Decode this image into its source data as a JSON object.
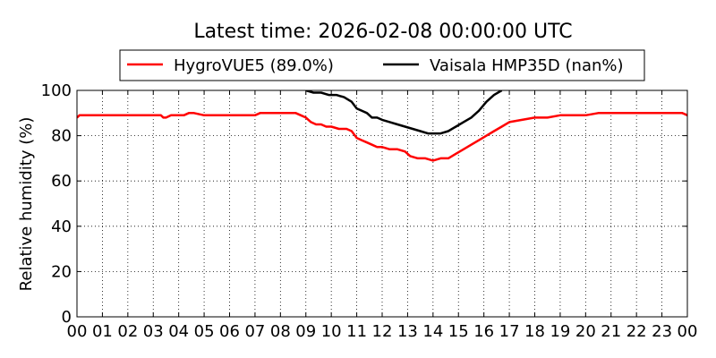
{
  "chart_data": {
    "type": "line",
    "title": "Latest time: 2026-02-08 00:00:00 UTC",
    "xlabel": "",
    "ylabel": "Relative humidity (%)",
    "xlim": [
      0,
      24
    ],
    "ylim": [
      0,
      100
    ],
    "grid": true,
    "legend_position": "top-center",
    "x_ticks": [
      "00",
      "01",
      "02",
      "03",
      "04",
      "05",
      "06",
      "07",
      "08",
      "09",
      "10",
      "11",
      "12",
      "13",
      "14",
      "15",
      "16",
      "17",
      "18",
      "19",
      "20",
      "21",
      "22",
      "23",
      "00"
    ],
    "y_ticks": [
      "0",
      "20",
      "40",
      "60",
      "80",
      "100"
    ],
    "series": [
      {
        "name": "HygroVUE5 (89.0%)",
        "color": "#ff0000",
        "x": [
          0.0,
          0.1,
          0.5,
          1.0,
          1.5,
          2.0,
          2.5,
          3.0,
          3.3,
          3.4,
          3.5,
          3.7,
          4.0,
          4.2,
          4.4,
          4.6,
          5.0,
          5.5,
          6.0,
          6.5,
          7.0,
          7.2,
          7.5,
          8.0,
          8.3,
          8.6,
          8.8,
          9.0,
          9.2,
          9.4,
          9.6,
          9.8,
          10.0,
          10.3,
          10.6,
          10.8,
          11.0,
          11.2,
          11.4,
          11.6,
          11.8,
          12.0,
          12.3,
          12.6,
          12.9,
          13.1,
          13.4,
          13.7,
          14.0,
          14.3,
          14.6,
          14.9,
          15.2,
          15.5,
          15.8,
          16.1,
          16.4,
          16.7,
          17.0,
          17.5,
          18.0,
          18.5,
          19.0,
          19.5,
          20.0,
          20.5,
          21.0,
          21.5,
          22.0,
          22.5,
          23.0,
          23.5,
          23.8,
          24.0
        ],
        "values": [
          88,
          89,
          89,
          89,
          89,
          89,
          89,
          89,
          89,
          88,
          88,
          89,
          89,
          89,
          90,
          90,
          89,
          89,
          89,
          89,
          89,
          90,
          90,
          90,
          90,
          90,
          89,
          88,
          86,
          85,
          85,
          84,
          84,
          83,
          83,
          82,
          79,
          78,
          77,
          76,
          75,
          75,
          74,
          74,
          73,
          71,
          70,
          70,
          69,
          70,
          70,
          72,
          74,
          76,
          78,
          80,
          82,
          84,
          86,
          87,
          88,
          88,
          89,
          89,
          89,
          90,
          90,
          90,
          90,
          90,
          90,
          90,
          90,
          89
        ]
      },
      {
        "name": "Vaisala HMP35D (nan%)",
        "color": "#000000",
        "x": [
          9.0,
          9.3,
          9.6,
          9.9,
          10.2,
          10.5,
          10.8,
          11.0,
          11.2,
          11.4,
          11.6,
          11.8,
          12.0,
          12.3,
          12.6,
          12.9,
          13.2,
          13.5,
          13.8,
          14.0,
          14.3,
          14.6,
          14.9,
          15.2,
          15.5,
          15.8,
          16.1,
          16.4,
          16.7
        ],
        "values": [
          100,
          99,
          99,
          98,
          98,
          97,
          95,
          92,
          91,
          90,
          88,
          88,
          87,
          86,
          85,
          84,
          83,
          82,
          81,
          81,
          81,
          82,
          84,
          86,
          88,
          91,
          95,
          98,
          100
        ]
      }
    ]
  }
}
